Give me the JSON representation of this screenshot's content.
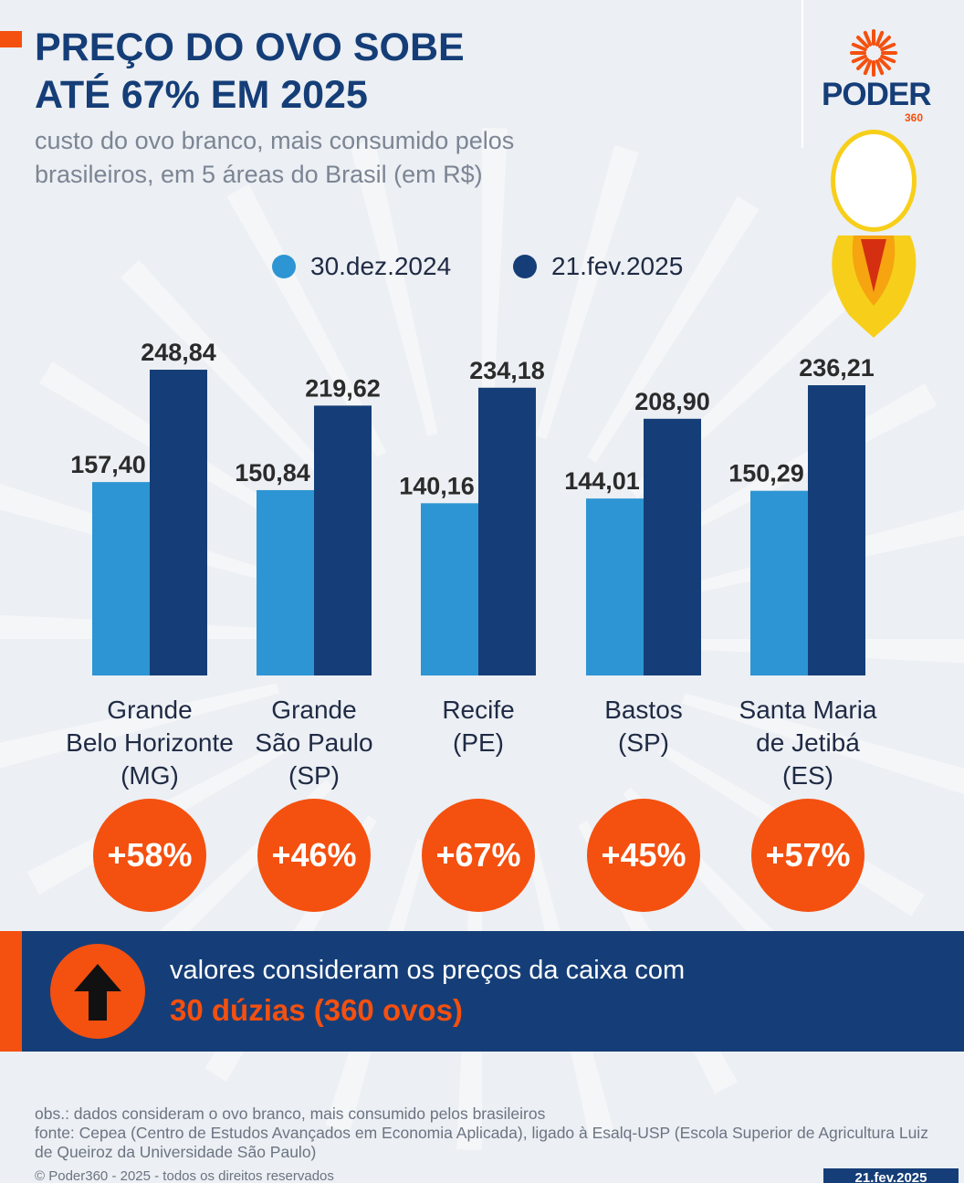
{
  "header": {
    "title_line1": "PREÇO DO OVO SOBE",
    "title_line2": "ATÉ 67% EM 2025",
    "subtitle_line1": "custo do ovo branco, mais consumido pelos",
    "subtitle_line2": "brasileiros, em 5 áreas do Brasil (em R$)"
  },
  "logo": {
    "word": "PODER",
    "sub": "360"
  },
  "colors": {
    "navy": "#153e78",
    "light_blue": "#2d95d3",
    "orange": "#f4500f"
  },
  "chart_data": {
    "type": "bar",
    "title": "PREÇO DO OVO SOBE ATÉ 67% EM 2025",
    "subtitle": "custo do ovo branco, mais consumido pelos brasileiros, em 5 áreas do Brasil (em R$)",
    "categories": [
      [
        "Grande",
        "Belo Horizonte",
        "(MG)"
      ],
      [
        "Grande",
        "São Paulo",
        "(SP)"
      ],
      [
        "Recife",
        "(PE)"
      ],
      [
        "Bastos",
        "(SP)"
      ],
      [
        "Santa Maria",
        "de Jetibá",
        "(ES)"
      ]
    ],
    "series": [
      {
        "name": "30.dez.2024",
        "color": "#2d95d3",
        "values": [
          157.4,
          150.84,
          140.16,
          144.01,
          150.29
        ],
        "labels": [
          "157,40",
          "150,84",
          "140,16",
          "144,01",
          "150,29"
        ]
      },
      {
        "name": "21.fev.2025",
        "color": "#153e78",
        "values": [
          248.84,
          219.62,
          234.18,
          208.9,
          236.21
        ],
        "labels": [
          "248,84",
          "219,62",
          "234,18",
          "208,90",
          "236,21"
        ]
      }
    ],
    "changes": [
      "+58%",
      "+46%",
      "+67%",
      "+45%",
      "+57%"
    ],
    "ylim": [
      0,
      260
    ],
    "grid": false,
    "legend_position": "top-center"
  },
  "note_band": {
    "line1": "valores consideram os preços da caixa com",
    "line2": "30 dúzias (360 ovos)"
  },
  "footer": {
    "obs": "obs.: dados consideram o ovo branco, mais consumido pelos brasileiros",
    "source": "fonte: Cepea (Centro de Estudos Avançados em Economia Aplicada), ligado à Esalq-USP (Escola Superior de Agricultura Luiz de Queiroz da Universidade São Paulo)",
    "copyright": "© Poder360 - 2025 - todos os direitos reservados",
    "date": "21.fev.2025"
  }
}
